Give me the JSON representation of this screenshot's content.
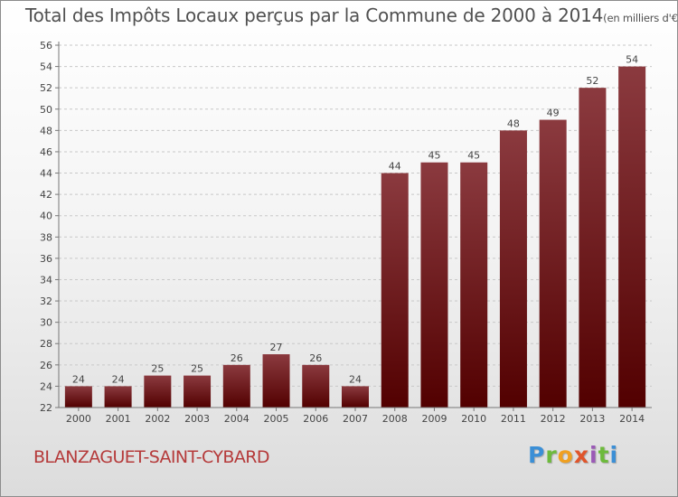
{
  "title": "Total des Impôts Locaux perçus par la Commune de 2000 à 2014",
  "unit": "(en milliers d'€)",
  "commune": "BLANZAGUET-SAINT-CYBARD",
  "logo": [
    "P",
    "r",
    "o",
    "x",
    "i",
    "t",
    "i"
  ],
  "colors": {
    "bar_top": "#8b3a3f",
    "bar_bottom": "#520000",
    "commune_text": "#b53a3a"
  },
  "chart_data": {
    "type": "bar",
    "title": "Total des Impôts Locaux perçus par la Commune de 2000 à 2014",
    "xlabel": "",
    "ylabel": "",
    "categories": [
      "2000",
      "2001",
      "2002",
      "2003",
      "2004",
      "2005",
      "2006",
      "2007",
      "2008",
      "2009",
      "2010",
      "2011",
      "2012",
      "2013",
      "2014"
    ],
    "values": [
      24,
      24,
      25,
      25,
      26,
      27,
      26,
      24,
      44,
      45,
      45,
      48,
      49,
      52,
      54
    ],
    "ylim": [
      22,
      56
    ],
    "yticks": [
      22,
      24,
      26,
      28,
      30,
      32,
      34,
      36,
      38,
      40,
      42,
      44,
      46,
      48,
      50,
      52,
      54,
      56
    ],
    "grid": true
  }
}
